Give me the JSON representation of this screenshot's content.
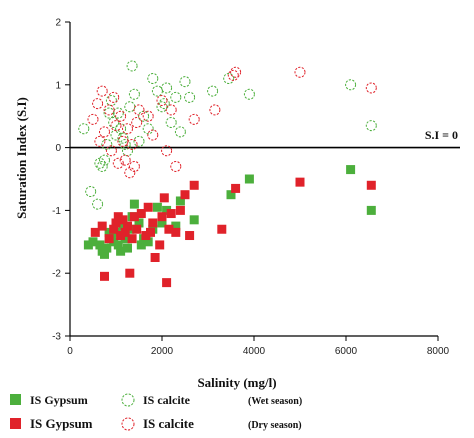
{
  "chart_data": {
    "type": "scatter",
    "title": "",
    "xlabel": "Salinity (mg/l)",
    "ylabel": "Saturation Index (S.I)",
    "xlim": [
      0,
      8000
    ],
    "ylim": [
      -3,
      2
    ],
    "xticks": [
      0,
      2000,
      4000,
      6000,
      8000
    ],
    "yticks": [
      -3,
      -2,
      -1,
      0,
      1,
      2
    ],
    "grid": false,
    "reference_line": {
      "y": 0,
      "label": "S.I = 0"
    },
    "legend": {
      "placement": "bottom",
      "wet_label": "(Wet season)",
      "dry_label": "(Dry season)"
    },
    "series": [
      {
        "name": "IS Gypsum",
        "season": "Wet season",
        "marker": "square-filled",
        "color": "#4caf3c",
        "points": [
          [
            400,
            -1.55
          ],
          [
            500,
            -1.5
          ],
          [
            650,
            -1.55
          ],
          [
            700,
            -1.65
          ],
          [
            750,
            -1.7
          ],
          [
            800,
            -1.6
          ],
          [
            850,
            -1.35
          ],
          [
            900,
            -1.45
          ],
          [
            950,
            -1.5
          ],
          [
            1000,
            -1.35
          ],
          [
            1050,
            -1.55
          ],
          [
            1100,
            -1.65
          ],
          [
            1150,
            -1.25
          ],
          [
            1200,
            -1.45
          ],
          [
            1250,
            -1.6
          ],
          [
            1300,
            -1.3
          ],
          [
            1350,
            -1.1
          ],
          [
            1400,
            -0.9
          ],
          [
            1500,
            -1.2
          ],
          [
            1550,
            -1.55
          ],
          [
            1600,
            -1.45
          ],
          [
            1700,
            -1.5
          ],
          [
            1800,
            -1.3
          ],
          [
            1900,
            -0.95
          ],
          [
            2000,
            -1.2
          ],
          [
            2100,
            -1.0
          ],
          [
            2300,
            -1.25
          ],
          [
            2400,
            -0.85
          ],
          [
            2700,
            -1.15
          ],
          [
            3500,
            -0.75
          ],
          [
            3900,
            -0.5
          ],
          [
            6100,
            -0.35
          ],
          [
            6550,
            -1.0
          ]
        ]
      },
      {
        "name": "IS calcite",
        "season": "Wet season",
        "marker": "circle-open",
        "color": "#4caf3c",
        "points": [
          [
            300,
            0.3
          ],
          [
            450,
            -0.7
          ],
          [
            600,
            -0.9
          ],
          [
            650,
            -0.25
          ],
          [
            700,
            -0.3
          ],
          [
            750,
            -0.2
          ],
          [
            800,
            0.05
          ],
          [
            850,
            0.55
          ],
          [
            900,
            0.75
          ],
          [
            950,
            0.4
          ],
          [
            1000,
            0.2
          ],
          [
            1050,
            0.55
          ],
          [
            1100,
            0.3
          ],
          [
            1150,
            0.15
          ],
          [
            1200,
            0.05
          ],
          [
            1250,
            -0.05
          ],
          [
            1300,
            0.65
          ],
          [
            1350,
            1.3
          ],
          [
            1400,
            0.85
          ],
          [
            1500,
            0.1
          ],
          [
            1600,
            0.5
          ],
          [
            1700,
            0.3
          ],
          [
            1800,
            1.1
          ],
          [
            1900,
            0.9
          ],
          [
            2000,
            0.65
          ],
          [
            2050,
            0.7
          ],
          [
            2100,
            0.95
          ],
          [
            2200,
            0.4
          ],
          [
            2300,
            0.8
          ],
          [
            2400,
            0.25
          ],
          [
            2500,
            1.05
          ],
          [
            2600,
            0.8
          ],
          [
            3100,
            0.9
          ],
          [
            3450,
            1.1
          ],
          [
            3900,
            0.85
          ],
          [
            6100,
            1.0
          ],
          [
            6550,
            0.35
          ]
        ]
      },
      {
        "name": "IS Gypsum",
        "season": "Dry season",
        "marker": "square-filled",
        "color": "#e0222a",
        "points": [
          [
            550,
            -1.35
          ],
          [
            700,
            -1.25
          ],
          [
            750,
            -2.05
          ],
          [
            850,
            -1.45
          ],
          [
            950,
            -1.3
          ],
          [
            1000,
            -1.2
          ],
          [
            1050,
            -1.1
          ],
          [
            1100,
            -1.4
          ],
          [
            1150,
            -1.15
          ],
          [
            1200,
            -1.35
          ],
          [
            1250,
            -1.25
          ],
          [
            1300,
            -2.0
          ],
          [
            1350,
            -1.45
          ],
          [
            1400,
            -1.1
          ],
          [
            1450,
            -1.3
          ],
          [
            1550,
            -1.05
          ],
          [
            1650,
            -1.4
          ],
          [
            1700,
            -0.95
          ],
          [
            1750,
            -1.35
          ],
          [
            1800,
            -1.2
          ],
          [
            1850,
            -1.75
          ],
          [
            1950,
            -1.55
          ],
          [
            2000,
            -1.1
          ],
          [
            2050,
            -0.8
          ],
          [
            2100,
            -2.15
          ],
          [
            2150,
            -1.3
          ],
          [
            2200,
            -1.05
          ],
          [
            2300,
            -1.35
          ],
          [
            2400,
            -1.0
          ],
          [
            2500,
            -0.75
          ],
          [
            2600,
            -1.4
          ],
          [
            2700,
            -0.6
          ],
          [
            3300,
            -1.3
          ],
          [
            3600,
            -0.65
          ],
          [
            5000,
            -0.55
          ],
          [
            6550,
            -0.6
          ]
        ]
      },
      {
        "name": "IS calcite",
        "season": "Dry season",
        "marker": "circle-open",
        "color": "#e0222a",
        "points": [
          [
            500,
            0.45
          ],
          [
            600,
            0.7
          ],
          [
            650,
            0.1
          ],
          [
            700,
            0.9
          ],
          [
            750,
            0.25
          ],
          [
            850,
            0.6
          ],
          [
            900,
            -0.05
          ],
          [
            950,
            0.8
          ],
          [
            1000,
            0.35
          ],
          [
            1050,
            -0.25
          ],
          [
            1100,
            0.5
          ],
          [
            1150,
            0.1
          ],
          [
            1200,
            -0.2
          ],
          [
            1250,
            0.3
          ],
          [
            1300,
            -0.4
          ],
          [
            1350,
            0.05
          ],
          [
            1400,
            -0.3
          ],
          [
            1450,
            0.4
          ],
          [
            1500,
            0.6
          ],
          [
            1700,
            0.5
          ],
          [
            1800,
            0.2
          ],
          [
            2000,
            0.75
          ],
          [
            2100,
            -0.05
          ],
          [
            2200,
            0.6
          ],
          [
            2300,
            -0.3
          ],
          [
            2700,
            0.45
          ],
          [
            3150,
            0.6
          ],
          [
            3550,
            1.15
          ],
          [
            3600,
            1.2
          ],
          [
            5000,
            1.2
          ],
          [
            6550,
            0.95
          ]
        ]
      }
    ]
  }
}
